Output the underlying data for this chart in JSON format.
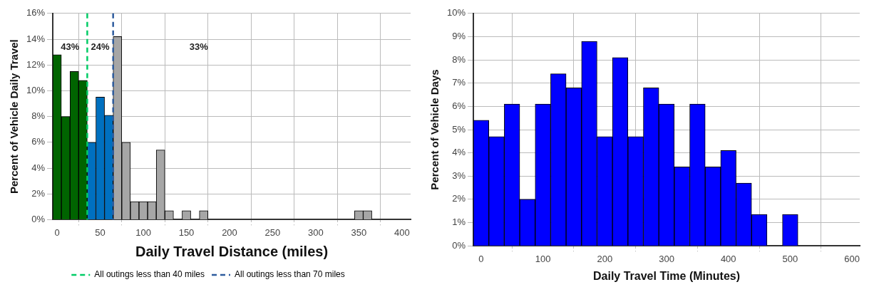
{
  "chart_data": [
    {
      "type": "histogram",
      "xlabel": "Daily Travel Distance (miles)",
      "ylabel": "Percent of Vehicle Daily Travel",
      "bins": [
        -5,
        5,
        15,
        25,
        35,
        45,
        55,
        65,
        75,
        85,
        95,
        105,
        115,
        125,
        135,
        145,
        155,
        165,
        175,
        185,
        195,
        205,
        215,
        225,
        235,
        245,
        255,
        265,
        275,
        285,
        295,
        305,
        315,
        325,
        335,
        345,
        355,
        365
      ],
      "values": [
        12.8,
        8.0,
        11.5,
        10.8,
        6.0,
        9.5,
        8.1,
        14.2,
        6.0,
        1.4,
        1.4,
        1.4,
        5.4,
        0.7,
        0,
        0.7,
        0,
        0.7,
        0,
        0,
        0,
        0,
        0,
        0,
        0,
        0,
        0,
        0,
        0,
        0,
        0,
        0,
        0,
        0,
        0,
        0.7,
        0.7
      ],
      "colors": [
        "#006400",
        "#006400",
        "#006400",
        "#006400",
        "#0070c0",
        "#0070c0",
        "#0070c0",
        "#a6a6a6",
        "#a6a6a6",
        "#a6a6a6",
        "#a6a6a6",
        "#a6a6a6",
        "#a6a6a6",
        "#a6a6a6",
        "#a6a6a6",
        "#a6a6a6",
        "#a6a6a6",
        "#a6a6a6",
        "#a6a6a6",
        "#a6a6a6",
        "#a6a6a6",
        "#a6a6a6",
        "#a6a6a6",
        "#a6a6a6",
        "#a6a6a6",
        "#a6a6a6",
        "#a6a6a6",
        "#a6a6a6",
        "#a6a6a6",
        "#a6a6a6",
        "#a6a6a6",
        "#a6a6a6",
        "#a6a6a6",
        "#a6a6a6",
        "#a6a6a6",
        "#a6a6a6",
        "#a6a6a6"
      ],
      "xlim": [
        -5,
        410
      ],
      "xticks": [
        0,
        50,
        100,
        150,
        200,
        250,
        300,
        350,
        400
      ],
      "ylim": [
        0,
        16
      ],
      "yticks": [
        {
          "value": 0,
          "label": "0%"
        },
        {
          "value": 2,
          "label": "2%"
        },
        {
          "value": 4,
          "label": "4%"
        },
        {
          "value": 6,
          "label": "6%"
        },
        {
          "value": 8,
          "label": "8%"
        },
        {
          "value": 10,
          "label": "10%"
        },
        {
          "value": 12,
          "label": "12%"
        },
        {
          "value": 14,
          "label": "14%"
        },
        {
          "value": 16,
          "label": "16%"
        }
      ],
      "ref_lines": [
        {
          "axis": "x",
          "value": 35,
          "label": "All outings less than 40 miles",
          "color": "#00cc66",
          "line_style": "dashed"
        },
        {
          "axis": "x",
          "value": 65,
          "label": "All outings less than 70 miles",
          "color": "#2e5c9e",
          "line_style": "dashed"
        }
      ],
      "annotations": [
        "43%",
        "24%",
        "33%"
      ],
      "grid": true,
      "legend": "bottom"
    },
    {
      "type": "histogram",
      "xlabel": "Daily Travel Time (Minutes)",
      "ylabel": "Percent of Vehicle Days",
      "bins": [
        -12.5,
        12.5,
        37.5,
        62.5,
        87.5,
        112.5,
        137.5,
        162.5,
        187.5,
        212.5,
        237.5,
        262.5,
        287.5,
        312.5,
        337.5,
        362.5,
        387.5,
        412.5,
        437.5,
        462.5,
        487.5,
        512.5
      ],
      "values": [
        5.4,
        4.7,
        6.1,
        2.0,
        6.1,
        7.4,
        6.8,
        8.8,
        4.7,
        8.1,
        4.7,
        6.8,
        6.1,
        3.4,
        6.1,
        3.4,
        4.1,
        2.7,
        1.35,
        0,
        1.35
      ],
      "color": "#0000ff",
      "xlim": [
        -12.5,
        612.5
      ],
      "xticks": [
        0,
        100,
        200,
        300,
        400,
        500,
        600
      ],
      "ylim": [
        0,
        10
      ],
      "yticks": [
        {
          "value": 0,
          "label": "0%"
        },
        {
          "value": 1,
          "label": "1%"
        },
        {
          "value": 2,
          "label": "2%"
        },
        {
          "value": 3,
          "label": "3%"
        },
        {
          "value": 4,
          "label": "4%"
        },
        {
          "value": 5,
          "label": "5%"
        },
        {
          "value": 6,
          "label": "6%"
        },
        {
          "value": 7,
          "label": "7%"
        },
        {
          "value": 8,
          "label": "8%"
        },
        {
          "value": 9,
          "label": "9%"
        },
        {
          "value": 10,
          "label": "10%"
        }
      ],
      "grid": true
    }
  ]
}
